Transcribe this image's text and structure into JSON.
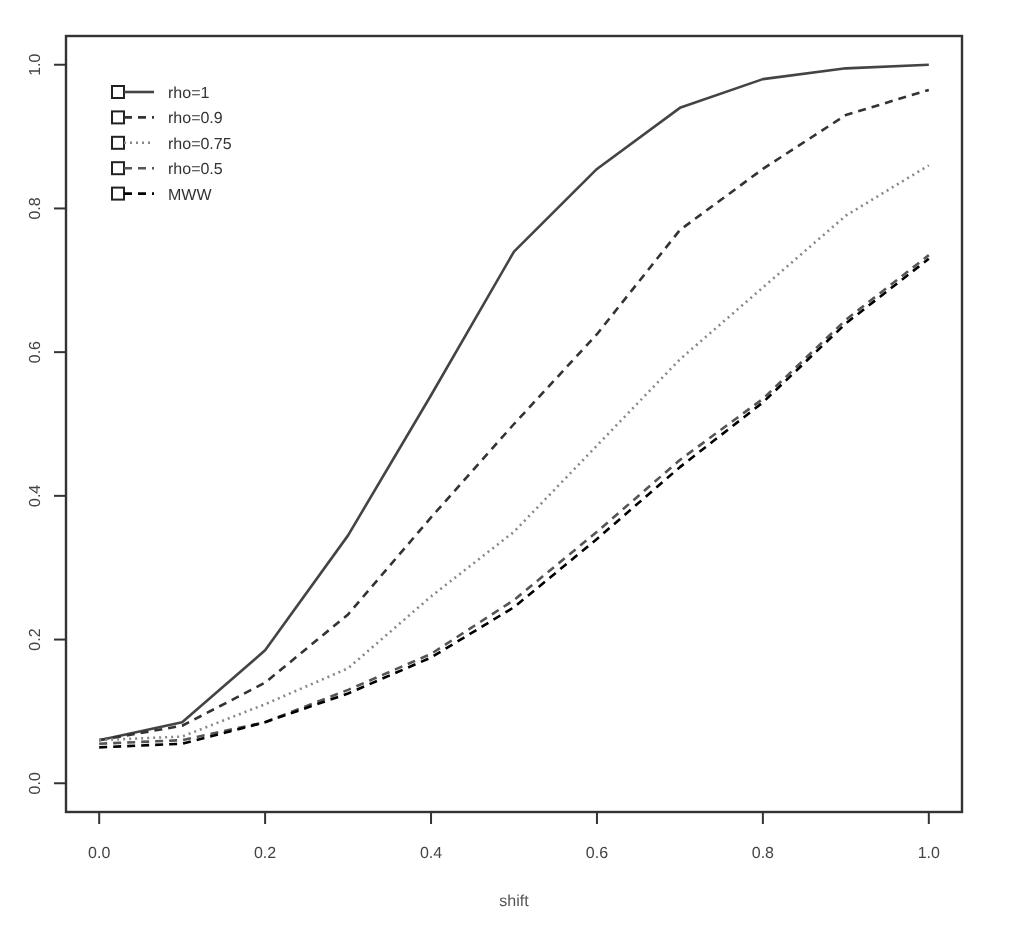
{
  "chart_data": {
    "type": "line",
    "xlabel": "shift",
    "x": [
      0,
      0.1,
      0.2,
      0.3,
      0.4,
      0.5,
      0.6,
      0.7,
      0.8,
      0.9,
      1.0
    ],
    "xlim": [
      -0.04,
      1.04
    ],
    "ylim": [
      -0.04,
      1.04
    ],
    "xticks": [
      {
        "value": 0,
        "label": "0.0"
      },
      {
        "value": 0.2,
        "label": "0.2"
      },
      {
        "value": 0.4,
        "label": "0.4"
      },
      {
        "value": 0.6,
        "label": "0.6"
      },
      {
        "value": 0.8,
        "label": "0.8"
      },
      {
        "value": 1,
        "label": "1.0"
      }
    ],
    "yticks": [
      {
        "value": 0,
        "label": "0.0"
      },
      {
        "value": 0.2,
        "label": "0.2"
      },
      {
        "value": 0.4,
        "label": "0.4"
      },
      {
        "value": 0.6,
        "label": "0.6"
      },
      {
        "value": 0.8,
        "label": "0.8"
      },
      {
        "value": 1,
        "label": "1.0"
      }
    ],
    "legend": "top left",
    "grid": false,
    "marker": "none",
    "series": [
      {
        "name": "rho=1",
        "color": "#444444",
        "line_style": "solid",
        "values": [
          0.06,
          0.085,
          0.185,
          0.345,
          0.54,
          0.74,
          0.855,
          0.94,
          0.98,
          0.995,
          1.0
        ]
      },
      {
        "name": "rho=0.9",
        "color": "#333333",
        "line_style": "dashed",
        "values": [
          0.06,
          0.08,
          0.14,
          0.235,
          0.37,
          0.5,
          0.625,
          0.77,
          0.855,
          0.93,
          0.965
        ]
      },
      {
        "name": "rho=0.75",
        "color": "#888888",
        "line_style": "dotted",
        "values": [
          0.06,
          0.065,
          0.11,
          0.16,
          0.26,
          0.35,
          0.47,
          0.59,
          0.69,
          0.79,
          0.86
        ]
      },
      {
        "name": "rho=0.5",
        "color": "#555555",
        "line_style": "dashed",
        "values": [
          0.055,
          0.06,
          0.085,
          0.13,
          0.18,
          0.255,
          0.35,
          0.45,
          0.535,
          0.645,
          0.735
        ]
      },
      {
        "name": "MWW",
        "color": "#000000",
        "line_style": "dashed",
        "values": [
          0.05,
          0.055,
          0.085,
          0.125,
          0.175,
          0.245,
          0.34,
          0.44,
          0.53,
          0.64,
          0.73
        ]
      }
    ]
  }
}
